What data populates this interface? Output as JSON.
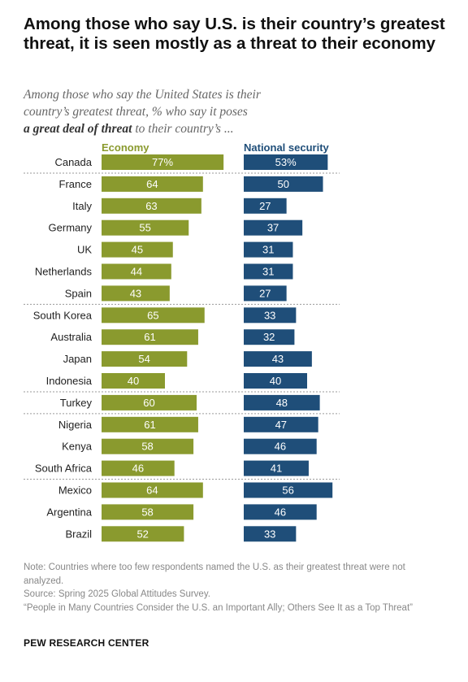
{
  "title": "Among those who say U.S. is their country’s greatest threat, it is seen mostly as a threat to their economy",
  "subtitle": {
    "line1": "Among those who say the United States is their",
    "line2": "country’s greatest threat, % who say it poses",
    "line3_bold": "a great deal of threat",
    "line3_rest": " to their country’s ..."
  },
  "chart_data": {
    "type": "bar",
    "categories": [
      "Canada",
      "France",
      "Italy",
      "Germany",
      "UK",
      "Netherlands",
      "Spain",
      "South Korea",
      "Australia",
      "Japan",
      "Indonesia",
      "Turkey",
      "Nigeria",
      "Kenya",
      "South Africa",
      "Mexico",
      "Argentina",
      "Brazil"
    ],
    "series": [
      {
        "name": "Economy",
        "values": [
          77,
          64,
          63,
          55,
          45,
          44,
          43,
          65,
          61,
          54,
          40,
          60,
          61,
          58,
          46,
          64,
          58,
          52
        ],
        "first_label": "77%",
        "color": "#8a9a2e"
      },
      {
        "name": "National security",
        "values": [
          53,
          50,
          27,
          37,
          31,
          31,
          27,
          33,
          32,
          43,
          40,
          48,
          47,
          46,
          41,
          56,
          46,
          33
        ],
        "first_label": "53%",
        "color": "#1f4e79"
      }
    ],
    "group_breaks_after": [
      "Canada",
      "Spain",
      "Indonesia",
      "Turkey",
      "South Africa"
    ]
  },
  "notes": {
    "note": "Note: Countries where too few respondents named the U.S. as their greatest threat were not analyzed.",
    "source": "Source: Spring 2025 Global Attitudes Survey.",
    "report": "“People in Many Countries Consider the U.S. an Important Ally; Others See It as a Top Threat”"
  },
  "brand": "PEW RESEARCH CENTER"
}
